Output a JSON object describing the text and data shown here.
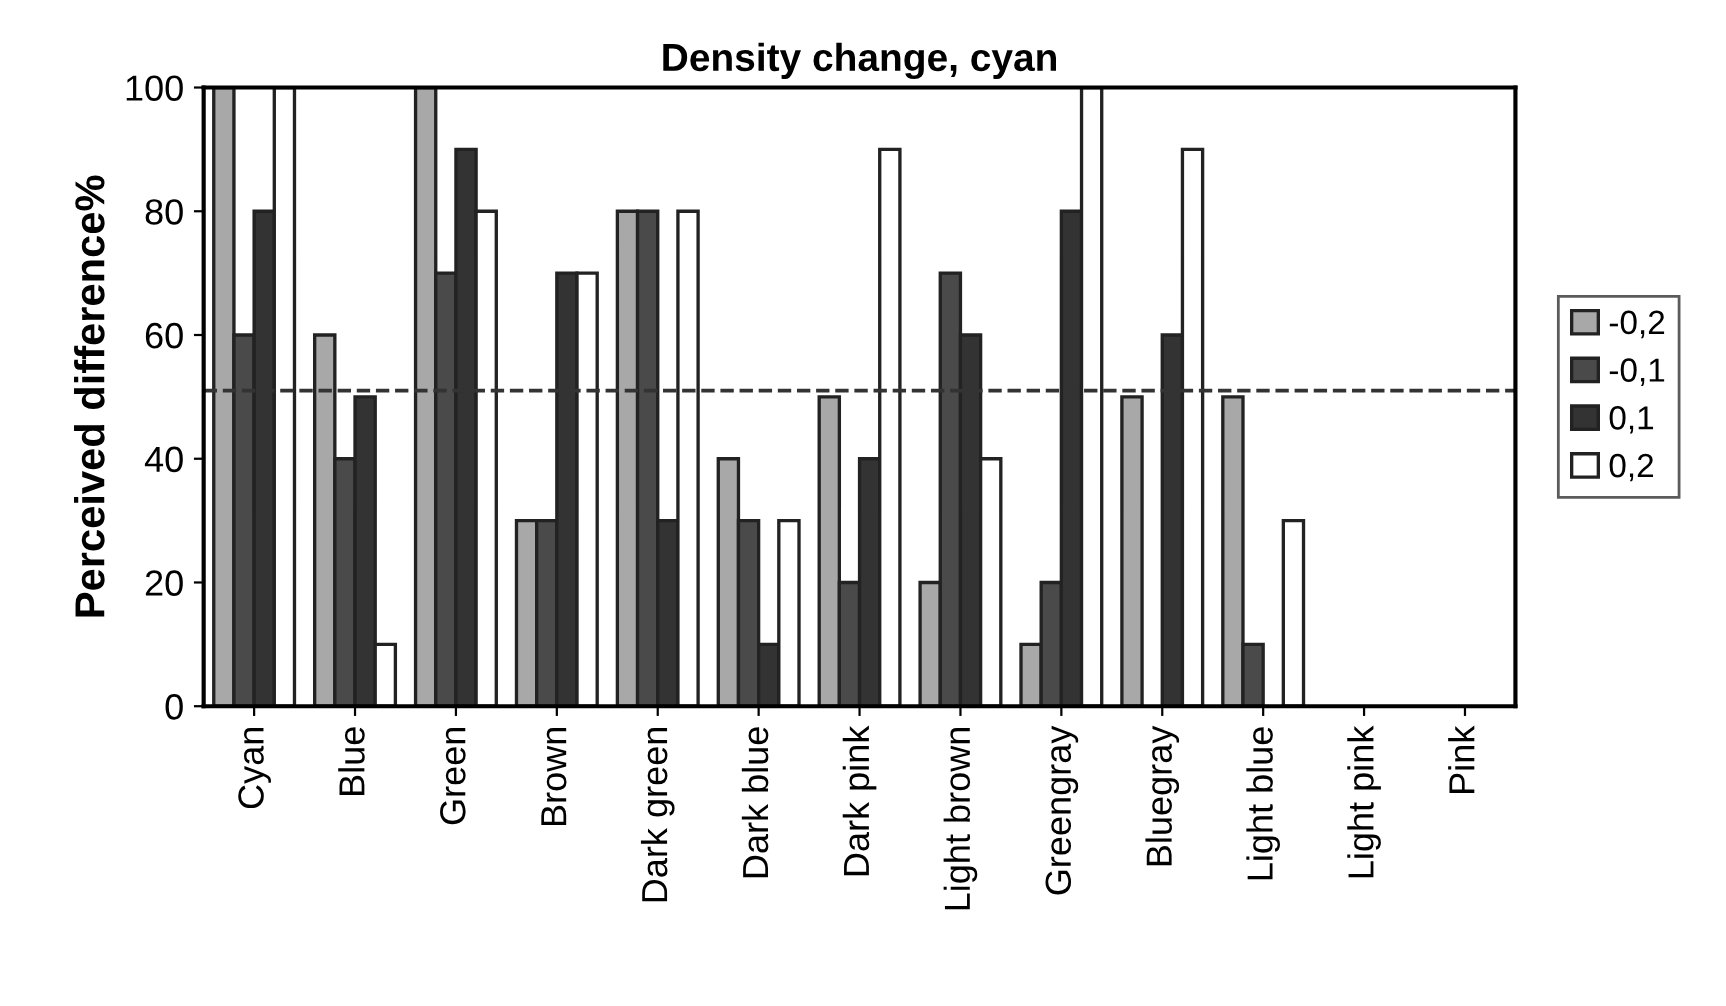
{
  "chart_data": {
    "type": "bar",
    "title": "Density change, cyan",
    "ylabel": "Perceived difference%",
    "categories": [
      "Cyan",
      "Blue",
      "Green",
      "Brown",
      "Dark green",
      "Dark blue",
      "Dark pink",
      "Light brown",
      "Greengray",
      "Bluegray",
      "Light blue",
      "Light pink",
      "Pink"
    ],
    "series": [
      {
        "name": "-0,2",
        "color": "#a8a8a8",
        "values": [
          100,
          60,
          100,
          30,
          80,
          40,
          50,
          20,
          10,
          50,
          50,
          0,
          0
        ]
      },
      {
        "name": "-0,1",
        "color": "#4a4a4a",
        "values": [
          60,
          40,
          70,
          30,
          80,
          30,
          20,
          70,
          20,
          0,
          10,
          0,
          0
        ]
      },
      {
        "name": "0,1",
        "color": "#333333",
        "values": [
          80,
          50,
          90,
          70,
          30,
          10,
          40,
          60,
          80,
          60,
          0,
          0,
          0
        ]
      },
      {
        "name": "0,2",
        "color": "#ffffff",
        "values": [
          100,
          10,
          80,
          70,
          80,
          30,
          90,
          40,
          100,
          90,
          30,
          0,
          0
        ]
      }
    ],
    "ylim": [
      0,
      100
    ],
    "yticks": [
      0,
      20,
      40,
      60,
      80,
      100
    ],
    "grid": false,
    "legend": "right",
    "ref_lines": [
      {
        "axis": "y",
        "value": 51,
        "line_style": "dashed",
        "color": "#333333"
      }
    ]
  }
}
